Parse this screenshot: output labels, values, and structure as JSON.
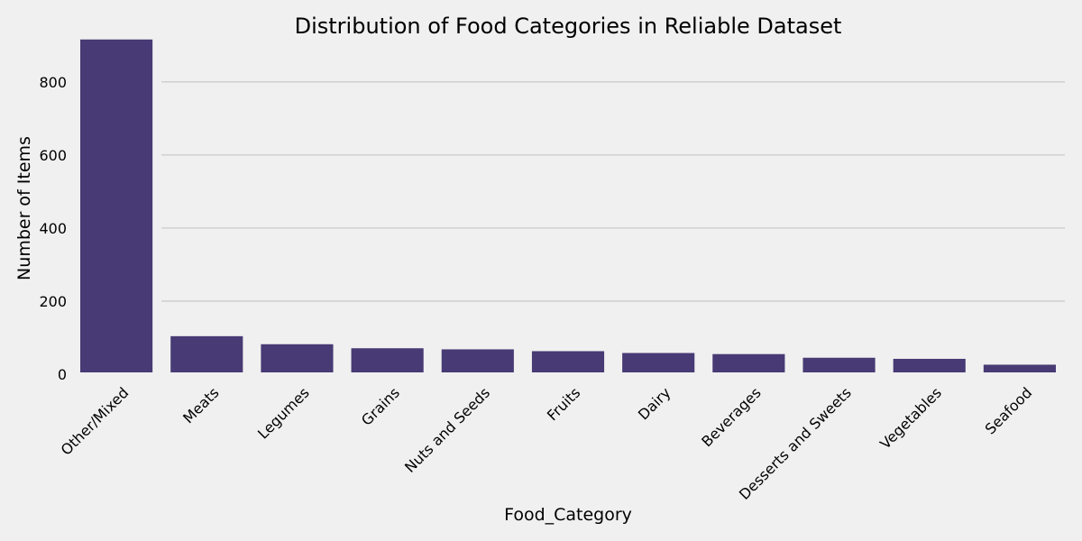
{
  "chart_data": {
    "type": "bar",
    "title": "Distribution of Food Categories in Reliable Dataset",
    "xlabel": "Food_Category",
    "ylabel": "Number of Items",
    "categories": [
      "Other/Mixed",
      "Meats",
      "Legumes",
      "Grains",
      "Nuts and Seeds",
      "Fruits",
      "Dairy",
      "Beverages",
      "Desserts and Sweets",
      "Vegetables",
      "Seafood"
    ],
    "values": [
      916,
      104,
      82,
      71,
      68,
      63,
      58,
      55,
      45,
      42,
      26
    ],
    "ylim": [
      0,
      950
    ],
    "yticks": [
      0,
      200,
      400,
      600,
      800
    ],
    "grid": "y",
    "bar_color": "#483a74",
    "grid_color": "#cbcbcb",
    "background": "#f0f0f0"
  }
}
